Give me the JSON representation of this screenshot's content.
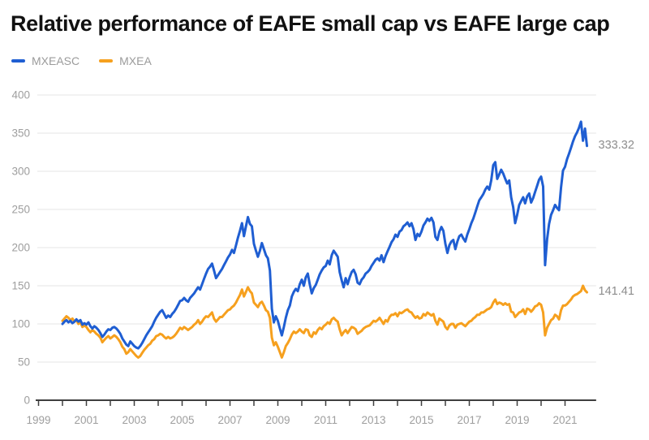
{
  "title": "Relative performance of EAFE small cap vs EAFE large cap",
  "legend": [
    {
      "label": "MXEASC",
      "color": "#1f5ed2"
    },
    {
      "label": "MXEA",
      "color": "#f6a01e"
    }
  ],
  "end_labels": {
    "mxeasc": "333.32",
    "mxea": "141.41"
  },
  "colors": {
    "title": "#111111",
    "axis_line": "#3f3f3f",
    "gridline": "#e6e6e6",
    "tick_label": "#9e9e9e",
    "end_label": "#8d8d8d"
  },
  "chart_data": {
    "type": "line",
    "title": "Relative performance of EAFE small cap vs EAFE large cap",
    "xlabel": "",
    "ylabel": "",
    "grid": "horizontal",
    "legend_position": "top-left",
    "ylim": [
      0,
      400
    ],
    "xlim": [
      1999,
      2022.3
    ],
    "y_ticks": [
      0,
      50,
      100,
      150,
      200,
      250,
      300,
      350,
      400
    ],
    "x_ticks_years": [
      1999,
      2000,
      2001,
      2002,
      2003,
      2004,
      2005,
      2006,
      2007,
      2008,
      2009,
      2010,
      2011,
      2012,
      2013,
      2014,
      2015,
      2016,
      2017,
      2018,
      2019,
      2020,
      2021
    ],
    "x_tick_labels": [
      "1999",
      "2001",
      "2003",
      "2005",
      "2007",
      "2009",
      "2011",
      "2013",
      "2015",
      "2017",
      "2019",
      "2021"
    ],
    "x_start_year": 2000,
    "x_step_months": 1,
    "series": [
      {
        "name": "MXEASC",
        "color": "#1f5ed2",
        "end_value": 333.32,
        "values": [
          100,
          103,
          105,
          102,
          104,
          101,
          103,
          106,
          103,
          105,
          99,
          101,
          99,
          102,
          97,
          94,
          97,
          95,
          92,
          88,
          83,
          86,
          90,
          93,
          92,
          95,
          96,
          94,
          91,
          87,
          81,
          77,
          73,
          71,
          77,
          74,
          71,
          69,
          68,
          71,
          75,
          80,
          85,
          89,
          93,
          97,
          103,
          108,
          112,
          116,
          118,
          113,
          108,
          111,
          109,
          113,
          116,
          120,
          125,
          130,
          131,
          134,
          131,
          129,
          134,
          137,
          140,
          144,
          148,
          145,
          152,
          159,
          166,
          172,
          175,
          179,
          170,
          160,
          164,
          168,
          172,
          177,
          182,
          187,
          191,
          197,
          193,
          203,
          213,
          222,
          232,
          215,
          228,
          240,
          231,
          228,
          205,
          196,
          188,
          196,
          206,
          198,
          190,
          186,
          170,
          120,
          102,
          110,
          104,
          94,
          85,
          96,
          108,
          118,
          124,
          136,
          142,
          146,
          143,
          152,
          158,
          150,
          161,
          166,
          152,
          140,
          147,
          151,
          158,
          165,
          170,
          174,
          176,
          183,
          178,
          190,
          196,
          192,
          188,
          168,
          157,
          148,
          160,
          152,
          161,
          168,
          171,
          165,
          154,
          152,
          158,
          161,
          166,
          168,
          171,
          176,
          180,
          184,
          186,
          183,
          190,
          181,
          189,
          195,
          201,
          207,
          211,
          217,
          214,
          221,
          223,
          228,
          230,
          233,
          228,
          232,
          224,
          210,
          218,
          215,
          221,
          229,
          233,
          238,
          235,
          239,
          233,
          214,
          210,
          221,
          227,
          222,
          205,
          193,
          203,
          208,
          210,
          198,
          208,
          215,
          217,
          212,
          208,
          217,
          224,
          232,
          238,
          246,
          254,
          262,
          266,
          270,
          276,
          280,
          276,
          288,
          308,
          312,
          290,
          296,
          302,
          297,
          290,
          284,
          288,
          266,
          253,
          232,
          243,
          256,
          261,
          266,
          258,
          267,
          271,
          259,
          265,
          273,
          281,
          289,
          293,
          280,
          177,
          211,
          231,
          243,
          249,
          256,
          252,
          249,
          279,
          301,
          306,
          316,
          323,
          331,
          339,
          346,
          351,
          357,
          365,
          340,
          356,
          333.32
        ]
      },
      {
        "name": "MXEA",
        "color": "#f6a01e",
        "end_value": 141.41,
        "values": [
          104,
          107,
          110,
          108,
          105,
          107,
          103,
          105,
          100,
          102,
          96,
          98,
          96,
          92,
          89,
          92,
          90,
          87,
          85,
          82,
          76,
          79,
          82,
          84,
          81,
          83,
          85,
          83,
          80,
          76,
          70,
          67,
          61,
          63,
          67,
          64,
          61,
          58,
          56,
          58,
          62,
          66,
          69,
          72,
          74,
          78,
          80,
          84,
          85,
          87,
          86,
          83,
          81,
          83,
          81,
          82,
          84,
          87,
          91,
          95,
          93,
          96,
          94,
          92,
          94,
          96,
          99,
          101,
          105,
          100,
          103,
          107,
          110,
          109,
          112,
          115,
          107,
          103,
          106,
          109,
          109,
          112,
          115,
          118,
          119,
          122,
          124,
          128,
          133,
          138,
          145,
          136,
          142,
          148,
          143,
          140,
          128,
          125,
          122,
          127,
          129,
          124,
          118,
          116,
          108,
          82,
          72,
          76,
          70,
          63,
          56,
          63,
          71,
          75,
          80,
          86,
          90,
          88,
          90,
          93,
          90,
          88,
          93,
          92,
          85,
          83,
          89,
          87,
          92,
          95,
          93,
          97,
          99,
          102,
          100,
          106,
          108,
          105,
          103,
          93,
          85,
          89,
          92,
          88,
          92,
          96,
          95,
          93,
          87,
          89,
          91,
          94,
          96,
          97,
          98,
          101,
          104,
          103,
          105,
          108,
          104,
          100,
          105,
          103,
          109,
          112,
          112,
          114,
          110,
          115,
          114,
          116,
          118,
          119,
          116,
          115,
          111,
          108,
          110,
          107,
          108,
          113,
          111,
          115,
          113,
          111,
          113,
          104,
          99,
          107,
          105,
          103,
          96,
          93,
          98,
          100,
          100,
          95,
          99,
          100,
          101,
          99,
          97,
          100,
          103,
          104,
          107,
          109,
          112,
          112,
          115,
          115,
          117,
          119,
          120,
          122,
          128,
          132,
          126,
          128,
          127,
          125,
          127,
          125,
          126,
          116,
          115,
          109,
          112,
          115,
          116,
          119,
          113,
          120,
          119,
          116,
          119,
          123,
          124,
          127,
          125,
          115,
          85,
          95,
          100,
          105,
          107,
          112,
          110,
          106,
          118,
          124,
          124,
          126,
          129,
          132,
          136,
          138,
          139,
          141,
          143,
          150,
          144,
          141.41
        ]
      }
    ]
  }
}
